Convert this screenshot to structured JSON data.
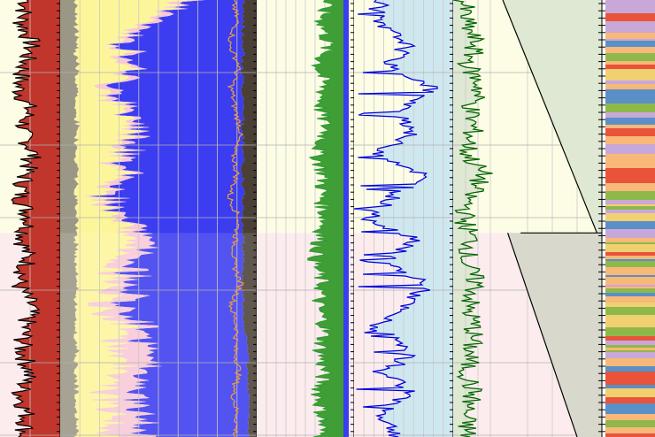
{
  "chart_data": {
    "type": "area",
    "title": "",
    "depth_axis": {
      "direction": "down",
      "tick_labels": []
    },
    "zones": [
      {
        "name": "",
        "top": 0.0,
        "bottom": 0.533,
        "background": "#fdfde6"
      },
      {
        "name": "",
        "top": 0.533,
        "bottom": 1.0,
        "background": "#fcecee"
      }
    ],
    "tracks": [
      {
        "id": "track-1",
        "curve": {
          "name": "",
          "color": "#000000",
          "fill": "#c0362c",
          "baseline": 0.62,
          "depth": [
            0.0,
            0.05,
            0.1,
            0.15,
            0.2,
            0.25,
            0.3,
            0.35,
            0.4,
            0.45,
            0.5,
            0.55,
            0.6,
            0.65,
            0.7,
            0.75,
            0.8,
            0.85,
            0.9,
            0.95,
            1.0
          ],
          "value": [
            0.45,
            0.35,
            0.52,
            0.4,
            0.3,
            0.48,
            0.36,
            0.55,
            0.42,
            0.33,
            0.5,
            0.38,
            0.46,
            0.3,
            0.52,
            0.41,
            0.36,
            0.49,
            0.34,
            0.44,
            0.4
          ]
        },
        "fill_left": "#fdfde6"
      },
      {
        "id": "track-2",
        "composition": {
          "depth": [
            0.0,
            0.05,
            0.1,
            0.15,
            0.2,
            0.25,
            0.3,
            0.35,
            0.4,
            0.45,
            0.5,
            0.55,
            0.6,
            0.65,
            0.7,
            0.75,
            0.8,
            0.85,
            0.9,
            0.95,
            1.0
          ],
          "layers": [
            {
              "name": "",
              "color": "#9a9786",
              "values": [
                0.08,
                0.08,
                0.08,
                0.08,
                0.08,
                0.08,
                0.08,
                0.08,
                0.08,
                0.08,
                0.08,
                0.08,
                0.08,
                0.08,
                0.08,
                0.08,
                0.08,
                0.08,
                0.08,
                0.08,
                0.08
              ]
            },
            {
              "name": "",
              "color": "#fdf59a",
              "values": [
                0.55,
                0.35,
                0.2,
                0.28,
                0.15,
                0.22,
                0.3,
                0.18,
                0.25,
                0.12,
                0.2,
                0.3,
                0.15,
                0.22,
                0.1,
                0.28,
                0.18,
                0.25,
                0.14,
                0.2,
                0.18
              ]
            },
            {
              "name": "",
              "color": "#f7c9d6",
              "values": [
                0.05,
                0.05,
                0.05,
                0.05,
                0.05,
                0.05,
                0.05,
                0.05,
                0.05,
                0.05,
                0.05,
                0.1,
                0.12,
                0.08,
                0.15,
                0.1,
                0.18,
                0.12,
                0.16,
                0.14,
                0.2
              ]
            },
            {
              "name": "",
              "color": "#3c3cf0",
              "values": [
                0.25,
                0.45,
                0.6,
                0.52,
                0.65,
                0.58,
                0.5,
                0.62,
                0.55,
                0.68,
                0.6,
                0.45,
                0.58,
                0.55,
                0.62,
                0.5,
                0.52,
                0.5,
                0.58,
                0.54,
                0.5
              ]
            },
            {
              "name": "",
              "color": "#4a4036",
              "values": [
                0.07,
                0.07,
                0.07,
                0.07,
                0.07,
                0.07,
                0.07,
                0.07,
                0.07,
                0.07,
                0.07,
                0.07,
                0.07,
                0.07,
                0.07,
                0.07,
                0.04,
                0.05,
                0.04,
                0.04,
                0.04
              ]
            }
          ]
        },
        "overlay_curve": {
          "name": "",
          "color": "#f0a030",
          "value": [
            0.88,
            0.9,
            0.86,
            0.91,
            0.87,
            0.89,
            0.92,
            0.88,
            0.9,
            0.86,
            0.91,
            0.89,
            0.88,
            0.92,
            0.87,
            0.9,
            0.89,
            0.91,
            0.88,
            0.9,
            0.89
          ]
        }
      },
      {
        "id": "track-3",
        "curve": {
          "name": "",
          "color": "#2e9a2e",
          "fill": "#3f9f36",
          "fill_from": "right",
          "value": [
            0.78,
            0.74,
            0.8,
            0.7,
            0.76,
            0.72,
            0.79,
            0.68,
            0.75,
            0.73,
            0.77,
            0.71,
            0.66,
            0.74,
            0.69,
            0.78,
            0.72,
            0.76,
            0.7,
            0.74,
            0.72
          ]
        },
        "edge_fill": "#3c3cf0"
      },
      {
        "id": "track-4",
        "curve": {
          "name": "",
          "color": "#0000dd",
          "fill": "#cfe8f0",
          "fill_from": "right",
          "value": [
            0.3,
            0.2,
            0.55,
            0.35,
            0.8,
            0.45,
            0.6,
            0.25,
            0.7,
            0.4,
            0.15,
            0.65,
            0.3,
            0.75,
            0.5,
            0.2,
            0.6,
            0.35,
            0.55,
            0.28,
            0.45
          ]
        }
      },
      {
        "id": "track-5",
        "curve": {
          "name": "",
          "color": "#006400",
          "fill": "#dfe8d2",
          "fill_from": "left",
          "value": [
            0.2,
            0.25,
            0.45,
            0.3,
            0.55,
            0.35,
            0.4,
            0.28,
            0.6,
            0.32,
            0.22,
            0.38,
            0.26,
            0.48,
            0.3,
            0.42,
            0.35,
            0.28,
            0.4,
            0.25,
            0.3
          ]
        }
      },
      {
        "id": "track-6",
        "wedges": [
          {
            "color": "#dfe8d2",
            "top": 0.0,
            "bottom": 0.533,
            "x_left_top": 0.0,
            "x_left_bottom": 0.95
          },
          {
            "color": "#d8d8cc",
            "top": 0.533,
            "bottom": 1.0,
            "x_left_top": 0.05,
            "x_left_bottom": 0.75
          }
        ]
      },
      {
        "id": "track-7",
        "lithology_colors": [
          "#f8b878",
          "#e8533a",
          "#8fb84a",
          "#c8a8d8",
          "#5a8fc8",
          "#f0d070"
        ]
      }
    ],
    "grid": true,
    "legend": "none"
  }
}
